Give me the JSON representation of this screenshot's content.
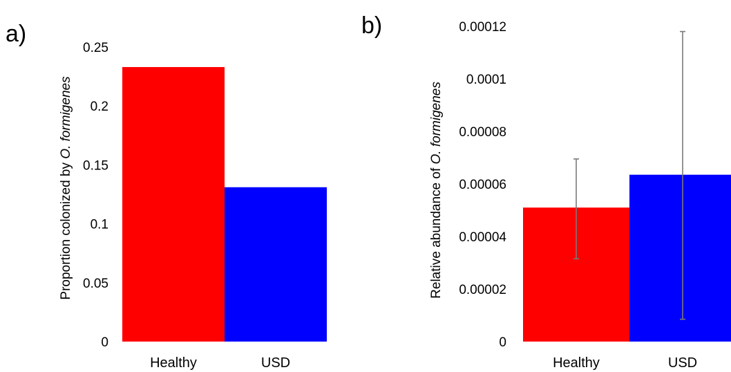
{
  "chart_data": [
    {
      "type": "bar",
      "panel_label": "a)",
      "categories": [
        "Healthy",
        "USD"
      ],
      "values": [
        0.233,
        0.131
      ],
      "colors": [
        "#ff0000",
        "#0000ff"
      ],
      "ylabel_prefix": "Proportion colonized by ",
      "ylabel_italic": "O. formigenes",
      "ylim": [
        0,
        0.25
      ],
      "yticks": [
        0,
        0.05,
        0.1,
        0.15,
        0.2,
        0.25
      ],
      "ytick_labels": [
        "0",
        "0.05",
        "0.1",
        "0.15",
        "0.2",
        "0.25"
      ],
      "grid": false
    },
    {
      "type": "bar",
      "panel_label": "b)",
      "categories": [
        "Healthy",
        "USD"
      ],
      "values": [
        5.1e-05,
        6.35e-05
      ],
      "error_low": [
        3.15e-05,
        8.5e-06
      ],
      "error_high": [
        6.95e-05,
        0.000118
      ],
      "colors": [
        "#ff0000",
        "#0000ff"
      ],
      "ylabel_prefix": "Relative abundance of ",
      "ylabel_italic": "O. formigenes",
      "ylim": [
        0,
        0.00012
      ],
      "yticks": [
        0,
        2e-05,
        4e-05,
        6e-05,
        8e-05,
        0.0001,
        0.00012
      ],
      "ytick_labels": [
        "0",
        "0.00002",
        "0.00004",
        "0.00006",
        "0.00008",
        "0.0001",
        "0.00012"
      ],
      "grid": false
    }
  ]
}
